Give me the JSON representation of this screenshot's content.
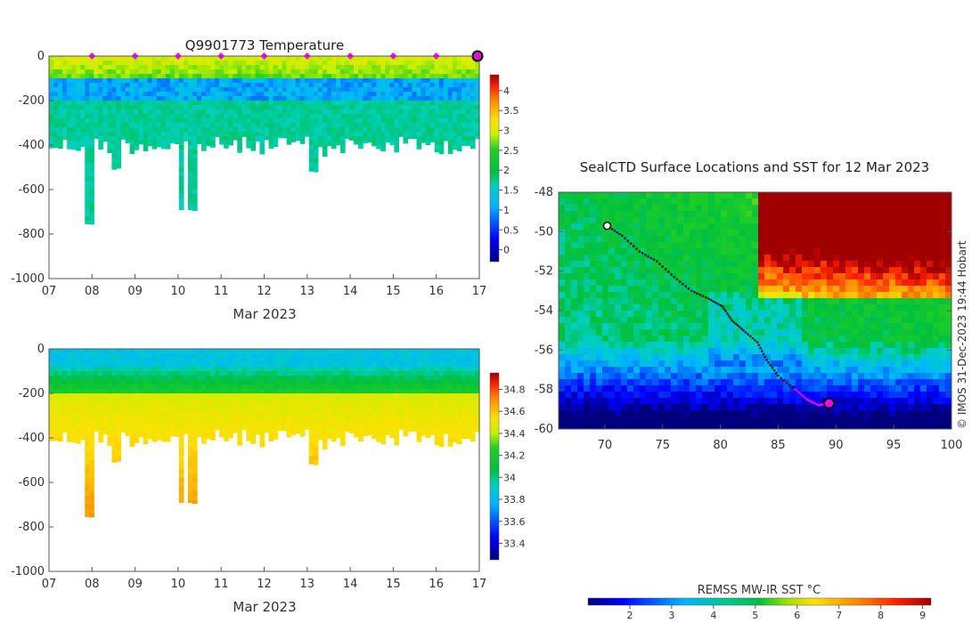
{
  "chart_data": [
    {
      "type": "heatmap",
      "title": "Q9901773  Temperature",
      "xlabel": "Mar 2023",
      "ylabel": "",
      "x_ticks": [
        "07",
        "08",
        "09",
        "10",
        "11",
        "12",
        "13",
        "14",
        "15",
        "16",
        "17"
      ],
      "y_ticks": [
        "0",
        "-200",
        "-400",
        "-600",
        "-800",
        "-1000"
      ],
      "xlim": [
        "2023-03-07",
        "2023-03-17"
      ],
      "ylim": [
        -1000,
        0
      ],
      "colorbar": {
        "ticks": [
          "0",
          "0.5",
          "1",
          "1.5",
          "2",
          "2.5",
          "3",
          "3.5",
          "4"
        ],
        "range": [
          -0.3,
          4.4
        ]
      },
      "surface_markers_days": [
        8,
        9,
        10,
        11,
        12,
        13,
        14,
        15,
        16
      ],
      "current_marker_day": 17,
      "marker_color": "#ff00ff"
    },
    {
      "type": "heatmap",
      "title": "",
      "xlabel": "Mar 2023",
      "ylabel": "",
      "x_ticks": [
        "07",
        "08",
        "09",
        "10",
        "11",
        "12",
        "13",
        "14",
        "15",
        "16",
        "17"
      ],
      "y_ticks": [
        "0",
        "-200",
        "-400",
        "-600",
        "-800",
        "-1000"
      ],
      "xlim": [
        "2023-03-07",
        "2023-03-17"
      ],
      "ylim": [
        -1000,
        0
      ],
      "colorbar": {
        "ticks": [
          "33.4",
          "33.6",
          "33.8",
          "34",
          "34.2",
          "34.4",
          "34.6",
          "34.8"
        ],
        "range": [
          33.25,
          34.95
        ]
      }
    },
    {
      "type": "heatmap",
      "title": "SealCTD Surface Locations and SST for 12 Mar 2023",
      "xlabel": "",
      "ylabel": "",
      "x_ticks": [
        "70",
        "75",
        "80",
        "85",
        "90",
        "95",
        "100"
      ],
      "y_ticks": [
        "-48",
        "-50",
        "-52",
        "-54",
        "-56",
        "-58",
        "-60"
      ],
      "xlim": [
        66,
        100
      ],
      "ylim": [
        -60,
        -48
      ],
      "colorbar": {
        "label": "REMSS MW-IR SST °C",
        "ticks": [
          "2",
          "3",
          "4",
          "5",
          "6",
          "7",
          "8",
          "9"
        ],
        "range": [
          1,
          9.2
        ]
      },
      "track": [
        [
          70.2,
          -49.7
        ],
        [
          71.5,
          -50.2
        ],
        [
          73.0,
          -51.0
        ],
        [
          74.5,
          -51.5
        ],
        [
          76.0,
          -52.3
        ],
        [
          77.5,
          -53.0
        ],
        [
          79.0,
          -53.4
        ],
        [
          80.2,
          -53.8
        ],
        [
          81.0,
          -54.5
        ],
        [
          82.0,
          -55.0
        ],
        [
          83.2,
          -55.6
        ],
        [
          84.0,
          -56.5
        ],
        [
          85.0,
          -57.3
        ],
        [
          86.5,
          -58.0
        ],
        [
          87.5,
          -58.5
        ],
        [
          88.5,
          -58.8
        ],
        [
          89.4,
          -58.7
        ]
      ],
      "track_recent_start_index": 13,
      "current_position": [
        89.4,
        -58.7
      ],
      "credit": "© IMOS 31-Dec-2023 19:44 Hobart"
    }
  ]
}
